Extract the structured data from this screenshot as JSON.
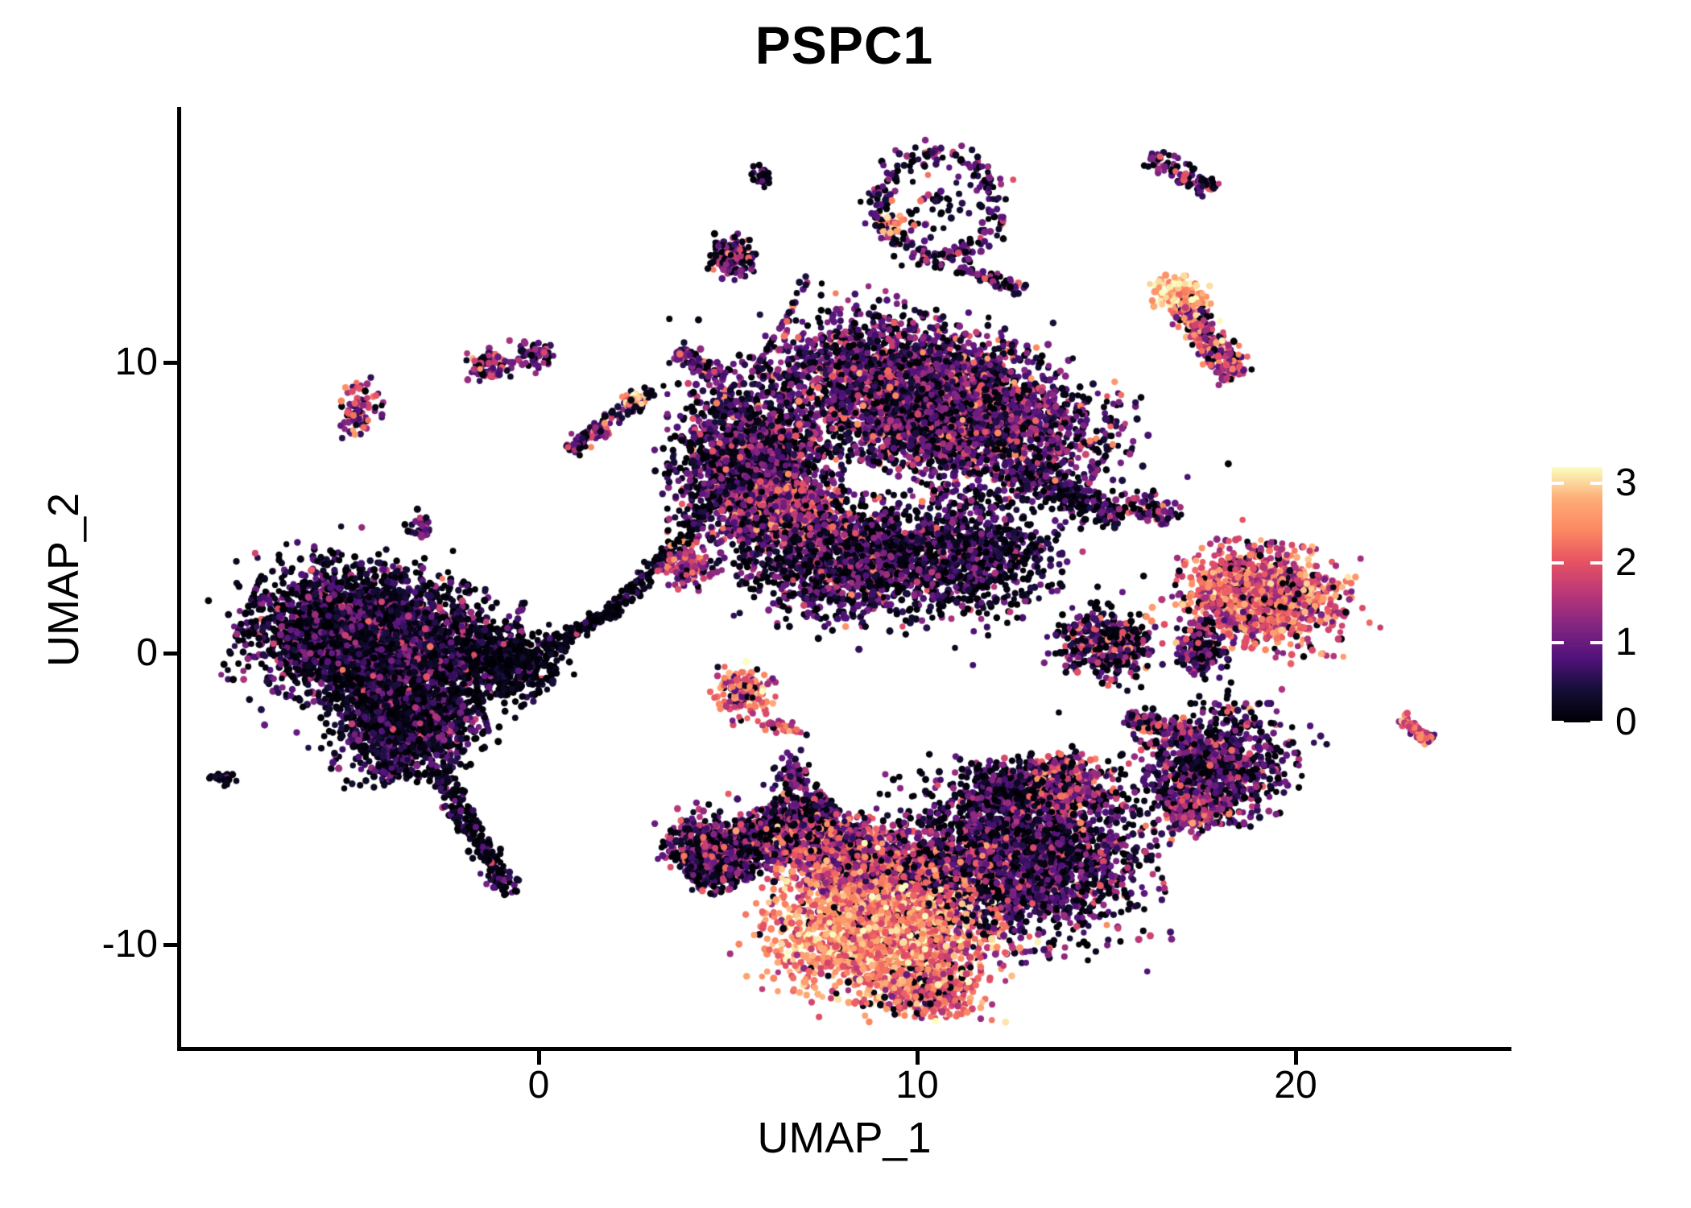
{
  "title": "PSPC1",
  "axes": {
    "x_label": "UMAP_1",
    "y_label": "UMAP_2",
    "x_tick_labels": [
      "0",
      "10",
      "20"
    ],
    "y_tick_labels": [
      "-10",
      "0",
      "10"
    ]
  },
  "legend": {
    "tick_labels": [
      "0",
      "1",
      "2",
      "3"
    ]
  },
  "colors": {
    "background": "#ffffff",
    "axis": "#000000",
    "text": "#000000",
    "colorbar_tick_marks": "#ffffff"
  },
  "chart_data": {
    "type": "scatter",
    "title": "PSPC1",
    "xlabel": "UMAP_1",
    "ylabel": "UMAP_2",
    "x_ticks": [
      0,
      10,
      20
    ],
    "y_ticks": [
      -10,
      0,
      10
    ],
    "xlim": [
      -9.5,
      25.7
    ],
    "ylim": [
      -13.7,
      18.6
    ],
    "grid": false,
    "legend_position": "right",
    "colorbar": {
      "vmin": 0,
      "vmax": 3.2,
      "tick_values": [
        0,
        1,
        2,
        3
      ],
      "colormap": "magma"
    },
    "point_radius_px": 4.0,
    "seed": 1234,
    "colormap_stops": [
      [
        0.0,
        0,
        0,
        4
      ],
      [
        0.125,
        20,
        14,
        54
      ],
      [
        0.25,
        81,
        18,
        124
      ],
      [
        0.375,
        130,
        37,
        129
      ],
      [
        0.5,
        183,
        55,
        121
      ],
      [
        0.625,
        230,
        81,
        100
      ],
      [
        0.75,
        251,
        135,
        97
      ],
      [
        0.875,
        253,
        172,
        119
      ],
      [
        1.0,
        252,
        253,
        191
      ]
    ],
    "clusters": [
      {
        "nm": "left-main",
        "t": "g",
        "cx": -4.4,
        "cy": 0.5,
        "sx": 1.5,
        "sy": 1.1,
        "rot": -18,
        "n": 3600,
        "e": [
          0.55,
          0.5,
          0.34,
          0.02,
          1.9
        ]
      },
      {
        "nm": "left-lower",
        "t": "g",
        "cx": -3.5,
        "cy": -2.4,
        "sx": 0.9,
        "sy": 0.8,
        "rot": 12,
        "n": 1400,
        "e": [
          0.5,
          0.45,
          0.38,
          0.015,
          1.8
        ]
      },
      {
        "nm": "left-tail",
        "t": "s",
        "x1": -2.6,
        "y1": -4.2,
        "x2": -0.85,
        "y2": -8.1,
        "w": 0.18,
        "n": 240,
        "e": [
          0.45,
          0.4,
          0.45,
          0.01,
          1.6
        ]
      },
      {
        "nm": "left-satellite",
        "t": "g",
        "cx": -8.35,
        "cy": -4.3,
        "sx": 0.15,
        "sy": 0.12,
        "rot": 0,
        "n": 26,
        "e": [
          0.5,
          0.45,
          0.45,
          0,
          1.5
        ]
      },
      {
        "nm": "left-miniblob",
        "t": "g",
        "cx": -4.0,
        "cy": -4.0,
        "sx": 0.17,
        "sy": 0.13,
        "rot": 0,
        "n": 40,
        "e": [
          0.6,
          0.4,
          0.3,
          0.02,
          1.6
        ]
      },
      {
        "nm": "bridge-a",
        "t": "s",
        "x1": 4.35,
        "y1": 4.75,
        "x2": 2.0,
        "y2": 1.55,
        "w": 0.13,
        "n": 150,
        "e": [
          0.25,
          0.3,
          0.55,
          0.01,
          1.7
        ]
      },
      {
        "nm": "bridge-b",
        "t": "s",
        "x1": 2.0,
        "y1": 1.55,
        "x2": 0.4,
        "y2": 0.25,
        "w": 0.12,
        "n": 110,
        "e": [
          0.22,
          0.28,
          0.6,
          0.01,
          1.6
        ]
      },
      {
        "nm": "bridge-knot",
        "t": "g",
        "cx": -0.9,
        "cy": -0.3,
        "sx": 0.7,
        "sy": 0.55,
        "rot": -20,
        "n": 520,
        "e": [
          0.25,
          0.3,
          0.55,
          0.015,
          1.7
        ]
      },
      {
        "nm": "bridge-pink",
        "t": "g",
        "cx": 3.9,
        "cy": 3.0,
        "sx": 0.3,
        "sy": 0.35,
        "rot": 0,
        "n": 120,
        "e": [
          1.5,
          0.5,
          0.1,
          0.05,
          2.2
        ]
      },
      {
        "nm": "mid-head",
        "t": "g",
        "cx": 10.5,
        "cy": 8.6,
        "sx": 2.1,
        "sy": 1.15,
        "rot": -25,
        "n": 4000,
        "e": [
          0.85,
          0.5,
          0.22,
          0.06,
          2.3
        ]
      },
      {
        "nm": "mid-left-lobe",
        "t": "g",
        "cx": 5.7,
        "cy": 6.3,
        "sx": 1.0,
        "sy": 1.4,
        "rot": 0,
        "n": 1900,
        "e": [
          0.8,
          0.5,
          0.25,
          0.04,
          2.2
        ]
      },
      {
        "nm": "mid-pink-band",
        "t": "g",
        "cx": 6.6,
        "cy": 4.9,
        "sx": 0.7,
        "sy": 0.42,
        "rot": -10,
        "n": 550,
        "e": [
          1.7,
          0.45,
          0.08,
          0.08,
          2.5
        ]
      },
      {
        "nm": "mid-lappets",
        "t": "g",
        "cx": 8.3,
        "cy": 3.1,
        "sx": 1.3,
        "sy": 0.95,
        "rot": 0,
        "n": 1300,
        "e": [
          0.7,
          0.5,
          0.3,
          0.03,
          2.2
        ]
      },
      {
        "nm": "mid-below-scatter",
        "t": "g",
        "cx": 11.3,
        "cy": 3.4,
        "sx": 1.1,
        "sy": 0.95,
        "rot": 0,
        "n": 850,
        "e": [
          0.6,
          0.45,
          0.36,
          0.02,
          2.0
        ]
      },
      {
        "nm": "mid-right-spur",
        "t": "s",
        "x1": 13.0,
        "y1": 6.0,
        "x2": 15.3,
        "y2": 4.7,
        "w": 0.3,
        "n": 200,
        "e": [
          0.5,
          0.4,
          0.42,
          0.01,
          1.8
        ]
      },
      {
        "nm": "mid-top-streak",
        "t": "s",
        "x1": 3.7,
        "y1": 10.3,
        "x2": 4.9,
        "y2": 9.6,
        "w": 0.18,
        "n": 80,
        "e": [
          0.9,
          0.5,
          0.2,
          0.05,
          2.2
        ]
      },
      {
        "nm": "bot-arm",
        "t": "s",
        "x1": 4.15,
        "y1": -7.6,
        "x2": 7.6,
        "y2": -5.25,
        "w": 0.4,
        "n": 1000,
        "e": [
          0.7,
          0.55,
          0.3,
          0.05,
          1.9
        ]
      },
      {
        "nm": "bot-arm-end",
        "t": "g",
        "cx": 4.4,
        "cy": -6.5,
        "sx": 0.5,
        "sy": 0.45,
        "rot": 0,
        "n": 280,
        "e": [
          0.9,
          0.6,
          0.28,
          0.06,
          1.8
        ]
      },
      {
        "nm": "bot-bright-core",
        "t": "g",
        "cx": 9.1,
        "cy": -9.3,
        "sx": 1.35,
        "sy": 1.2,
        "rot": -10,
        "n": 2400,
        "e": [
          2.3,
          0.45,
          0.05,
          0.1,
          2.9
        ]
      },
      {
        "nm": "bot-mid-band",
        "t": "g",
        "cx": 8.1,
        "cy": -6.9,
        "sx": 1.3,
        "sy": 0.6,
        "rot": -12,
        "n": 1400,
        "e": [
          1.5,
          0.55,
          0.12,
          0.05,
          2.6
        ]
      },
      {
        "nm": "bot-right-lobe",
        "t": "g",
        "cx": 12.9,
        "cy": -7.0,
        "sx": 1.5,
        "sy": 1.4,
        "rot": 8,
        "n": 2400,
        "e": [
          0.75,
          0.5,
          0.3,
          0.04,
          2.0
        ]
      },
      {
        "nm": "bot-tip",
        "t": "g",
        "cx": 10.3,
        "cy": -11.5,
        "sx": 0.6,
        "sy": 0.5,
        "rot": 0,
        "n": 420,
        "e": [
          2.0,
          0.55,
          0.1,
          0.06,
          2.8
        ]
      },
      {
        "nm": "bot-neck",
        "t": "g",
        "cx": 12.3,
        "cy": -4.7,
        "sx": 0.65,
        "sy": 0.5,
        "rot": 0,
        "n": 280,
        "e": [
          0.6,
          0.45,
          0.36,
          0.02,
          1.9
        ]
      },
      {
        "nm": "mid-bright-small",
        "t": "g",
        "cx": 5.45,
        "cy": -1.4,
        "sx": 0.35,
        "sy": 0.4,
        "rot": 0,
        "n": 160,
        "e": [
          1.9,
          0.6,
          0.13,
          0.12,
          2.7
        ]
      },
      {
        "nm": "mid-orange-streak",
        "t": "s",
        "x1": 6.0,
        "y1": -2.45,
        "x2": 6.9,
        "y2": -2.6,
        "w": 0.1,
        "n": 28,
        "e": [
          1.9,
          0.4,
          0.05,
          0.1,
          2.4
        ]
      },
      {
        "nm": "mid-purple-small",
        "t": "g",
        "cx": 6.75,
        "cy": -4.2,
        "sx": 0.25,
        "sy": 0.4,
        "rot": 0,
        "n": 75,
        "e": [
          0.8,
          0.45,
          0.22,
          0.05,
          2.2
        ]
      },
      {
        "nm": "lt-edge-blob",
        "t": "g",
        "cx": -4.8,
        "cy": 8.3,
        "sx": 0.3,
        "sy": 0.42,
        "rot": 0,
        "n": 80,
        "e": [
          1.1,
          0.6,
          0.15,
          0.12,
          2.3
        ]
      },
      {
        "nm": "lt-blob-a",
        "t": "g",
        "cx": -1.3,
        "cy": 9.9,
        "sx": 0.25,
        "sy": 0.25,
        "rot": 0,
        "n": 75,
        "e": [
          1.2,
          0.6,
          0.15,
          0.1,
          2.2
        ]
      },
      {
        "nm": "lt-blob-b",
        "t": "g",
        "cx": -0.1,
        "cy": 10.25,
        "sx": 0.22,
        "sy": 0.18,
        "rot": -15,
        "n": 70,
        "e": [
          1.0,
          0.5,
          0.25,
          0.04,
          2.0
        ]
      },
      {
        "nm": "lt-streak",
        "t": "s",
        "x1": 0.9,
        "y1": 7.1,
        "x2": 2.9,
        "y2": 8.95,
        "w": 0.15,
        "n": 110,
        "e": [
          0.9,
          0.5,
          0.3,
          0.06,
          2.4
        ]
      },
      {
        "nm": "lt-streak-tip",
        "t": "g",
        "cx": 2.55,
        "cy": 8.75,
        "sx": 0.15,
        "sy": 0.12,
        "rot": 0,
        "n": 25,
        "e": [
          2.5,
          0.4,
          0.0,
          0.2,
          3.0
        ]
      },
      {
        "nm": "lt-pair",
        "t": "g",
        "cx": -3.05,
        "cy": 4.3,
        "sx": 0.18,
        "sy": 0.18,
        "rot": 45,
        "n": 30,
        "e": [
          0.8,
          0.4,
          0.3,
          0.05,
          1.8
        ]
      },
      {
        "nm": "top-tiny",
        "t": "g",
        "cx": 5.95,
        "cy": 16.35,
        "sx": 0.12,
        "sy": 0.18,
        "rot": 0,
        "n": 28,
        "e": [
          0.55,
          0.5,
          0.45,
          0.05,
          1.6
        ]
      },
      {
        "nm": "top-small",
        "t": "g",
        "cx": 5.15,
        "cy": 13.6,
        "sx": 0.3,
        "sy": 0.35,
        "rot": 0,
        "n": 130,
        "e": [
          0.95,
          0.55,
          0.3,
          0.07,
          1.9
        ]
      },
      {
        "nm": "top-arc",
        "t": "r",
        "cx": 10.55,
        "cy": 15.4,
        "rx": 1.55,
        "ry": 1.8,
        "th": 0.22,
        "n": 240,
        "e": [
          0.8,
          0.45,
          0.32,
          0.04,
          2.0
        ]
      },
      {
        "nm": "top-arc-inner",
        "t": "g",
        "cx": 10.55,
        "cy": 15.3,
        "sx": 0.5,
        "sy": 0.6,
        "rot": 0,
        "n": 40,
        "e": [
          0.5,
          0.4,
          0.5,
          0.03,
          1.8
        ]
      },
      {
        "nm": "top-arc-patch",
        "t": "g",
        "cx": 9.35,
        "cy": 14.6,
        "sx": 0.22,
        "sy": 0.25,
        "rot": 0,
        "n": 45,
        "e": [
          2.4,
          0.4,
          0.02,
          0.2,
          3.0
        ]
      },
      {
        "nm": "top-arc-tail",
        "t": "s",
        "x1": 11.2,
        "y1": 13.2,
        "x2": 12.75,
        "y2": 12.55,
        "w": 0.13,
        "n": 60,
        "e": [
          1.0,
          0.5,
          0.3,
          0.05,
          2.0
        ]
      },
      {
        "nm": "top-right-streak",
        "t": "s",
        "x1": 16.2,
        "y1": 17.0,
        "x2": 17.7,
        "y2": 15.9,
        "w": 0.18,
        "n": 85,
        "e": [
          0.9,
          0.55,
          0.3,
          0.06,
          2.0
        ]
      },
      {
        "nm": "tr-bright-head",
        "t": "g",
        "cx": 16.95,
        "cy": 12.3,
        "sx": 0.35,
        "sy": 0.3,
        "rot": 0,
        "n": 140,
        "e": [
          2.7,
          0.35,
          0.04,
          0.18,
          3.1
        ]
      },
      {
        "nm": "tr-streak",
        "t": "s",
        "x1": 17.05,
        "y1": 11.9,
        "x2": 18.4,
        "y2": 9.6,
        "w": 0.25,
        "n": 240,
        "e": [
          1.6,
          0.65,
          0.15,
          0.1,
          2.6
        ]
      },
      {
        "nm": "r-small",
        "t": "g",
        "cx": 16.1,
        "cy": 4.9,
        "sx": 0.4,
        "sy": 0.25,
        "rot": -30,
        "n": 85,
        "e": [
          1.1,
          0.6,
          0.25,
          0.12,
          2.4
        ]
      },
      {
        "nm": "r-dots",
        "t": "g",
        "cx": 13.3,
        "cy": 3.65,
        "sx": 0.3,
        "sy": 0.3,
        "rot": 0,
        "n": 10,
        "e": [
          0.8,
          0.4,
          0.4,
          0,
          1.5
        ]
      },
      {
        "nm": "r-orange-main",
        "t": "g",
        "cx": 19.1,
        "cy": 2.0,
        "sx": 1.0,
        "sy": 0.8,
        "rot": -12,
        "n": 1200,
        "e": [
          1.9,
          0.5,
          0.09,
          0.12,
          2.7
        ]
      },
      {
        "nm": "r-orange-tail",
        "t": "g",
        "cx": 17.5,
        "cy": 0.1,
        "sx": 0.3,
        "sy": 0.45,
        "rot": 0,
        "n": 170,
        "e": [
          0.8,
          0.5,
          0.3,
          0.03,
          2.0
        ]
      },
      {
        "nm": "r-purple",
        "t": "g",
        "cx": 15.0,
        "cy": 0.3,
        "sx": 0.6,
        "sy": 0.55,
        "rot": -20,
        "n": 400,
        "e": [
          0.8,
          0.5,
          0.3,
          0.07,
          2.2
        ]
      },
      {
        "nm": "bird-body",
        "t": "g",
        "cx": 17.9,
        "cy": -3.8,
        "sx": 0.95,
        "sy": 0.9,
        "rot": 0,
        "n": 900,
        "e": [
          0.8,
          0.5,
          0.28,
          0.06,
          2.2
        ]
      },
      {
        "nm": "bird-lower",
        "t": "g",
        "cx": 17.2,
        "cy": -5.4,
        "sx": 0.4,
        "sy": 0.35,
        "rot": 0,
        "n": 220,
        "e": [
          1.3,
          0.5,
          0.15,
          0.08,
          2.4
        ]
      },
      {
        "nm": "bird-wing",
        "t": "s",
        "x1": 15.6,
        "y1": -2.2,
        "x2": 17.2,
        "y2": -2.9,
        "w": 0.18,
        "n": 130,
        "e": [
          1.2,
          0.55,
          0.2,
          0.08,
          2.3
        ]
      },
      {
        "nm": "pink-cluster",
        "t": "g",
        "cx": 13.95,
        "cy": -4.6,
        "sx": 0.45,
        "sy": 0.5,
        "rot": -15,
        "n": 380,
        "e": [
          1.4,
          0.6,
          0.18,
          0.07,
          2.4
        ]
      },
      {
        "nm": "far-right-streak",
        "t": "s",
        "x1": 22.8,
        "y1": -2.3,
        "x2": 23.6,
        "y2": -2.95,
        "w": 0.12,
        "n": 65,
        "e": [
          1.9,
          0.5,
          0.1,
          0.1,
          2.6
        ]
      }
    ]
  }
}
